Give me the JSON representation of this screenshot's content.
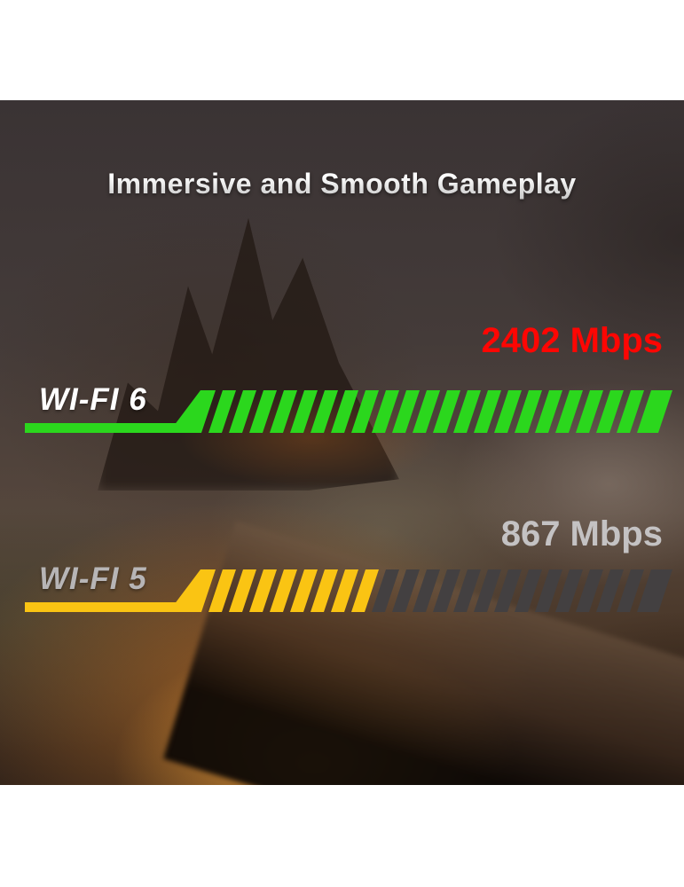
{
  "title": "Immersive and Smooth Gameplay",
  "chart_data": {
    "type": "bar",
    "orientation": "horizontal",
    "title": "Immersive and Smooth Gameplay",
    "categories": [
      "WI-FI 6",
      "WI-FI 5"
    ],
    "values": [
      2402,
      867
    ],
    "unit": "Mbps",
    "value_labels": [
      "2402 Mbps",
      "867 Mbps"
    ],
    "xlim": [
      0,
      2402
    ],
    "legend": "none",
    "style": "diagonal-striped progress bars over dark gameplay scene"
  },
  "bars": [
    {
      "label": "WI-FI 6",
      "value": 2402,
      "value_label": "2402 Mbps",
      "bar_color": "#2bd71d",
      "rest_color": "#434041",
      "value_color": "#fe0603",
      "label_color": "#ffffff"
    },
    {
      "label": "WI-FI 5",
      "value": 867,
      "value_label": "867 Mbps",
      "bar_color": "#fac413",
      "rest_color": "#434041",
      "value_color": "#c4c2c3",
      "label_color": "#b7b5b6"
    }
  ],
  "colors": {
    "page_background": "#ffffff",
    "scene_base": "#443a36",
    "fire_glow": "#eea23a",
    "wifi6_green": "#2bd71d",
    "wifi5_yellow": "#fac413",
    "unfilled_gray": "#434041",
    "speed_red": "#fe0603",
    "speed_gray": "#c4c2c3"
  }
}
